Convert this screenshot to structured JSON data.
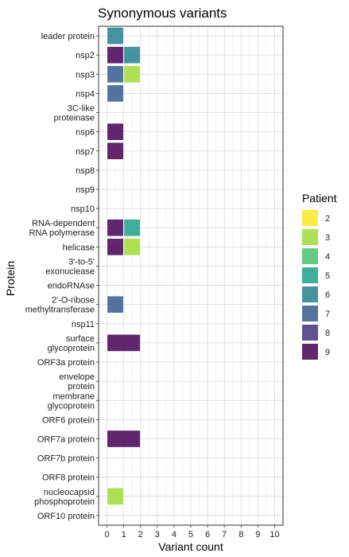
{
  "chart_data": {
    "type": "bar",
    "orientation": "horizontal",
    "stacked": true,
    "title": "Synonymous variants",
    "xlabel": "Variant count",
    "ylabel": "Protein",
    "xlim": [
      0,
      10
    ],
    "x_ticks": [
      0,
      1,
      2,
      3,
      4,
      5,
      6,
      7,
      8,
      9,
      10
    ],
    "grid": true,
    "legend_position": "right",
    "categories": [
      "leader protein",
      "nsp2",
      "nsp3",
      "nsp4",
      "3C-like\nproteinase",
      "nsp6",
      "nsp7",
      "nsp8",
      "nsp9",
      "nsp10",
      "RNA-dependent\nRNA polymerase",
      "helicase",
      "3'-to-5'\nexonuclease",
      "endoRNAse",
      "2'-O-ribose\nmethyltransferase",
      "nsp11",
      "surface\nglycoprotein",
      "ORF3a protein",
      "envelope\nprotein",
      "membrane\nglycoprotein",
      "ORF6 protein",
      "ORF7a protein",
      "ORF7b protein",
      "ORF8 protein",
      "nucleocapsid\nphosphoprotein",
      "ORF10 protein"
    ],
    "series": [
      {
        "name": "2",
        "color": "#FDE725",
        "values": [
          0,
          0,
          0,
          0,
          0,
          0,
          0,
          0,
          0,
          0,
          0,
          0,
          0,
          0,
          0,
          0,
          0,
          0,
          0,
          0,
          0,
          0,
          0,
          0,
          0,
          0
        ]
      },
      {
        "name": "3",
        "color": "#A0DA39",
        "values": [
          0,
          0,
          1,
          0,
          0,
          0,
          0,
          0,
          0,
          0,
          0,
          1,
          0,
          0,
          0,
          0,
          0,
          0,
          0,
          0,
          0,
          0,
          0,
          0,
          1,
          0
        ]
      },
      {
        "name": "4",
        "color": "#4AC16D",
        "values": [
          0,
          0,
          0,
          0,
          0,
          0,
          0,
          0,
          0,
          0,
          0,
          0,
          0,
          0,
          0,
          0,
          0,
          0,
          0,
          0,
          0,
          0,
          0,
          0,
          0,
          0
        ]
      },
      {
        "name": "5",
        "color": "#1FA187",
        "values": [
          0,
          0,
          0,
          0,
          0,
          0,
          0,
          0,
          0,
          0,
          1,
          0,
          0,
          0,
          0,
          0,
          0,
          0,
          0,
          0,
          0,
          0,
          0,
          0,
          0,
          0
        ]
      },
      {
        "name": "6",
        "color": "#277F8E",
        "values": [
          1,
          1,
          0,
          0,
          0,
          0,
          0,
          0,
          0,
          0,
          0,
          0,
          0,
          0,
          0,
          0,
          0,
          0,
          0,
          0,
          0,
          0,
          0,
          0,
          0,
          0
        ]
      },
      {
        "name": "7",
        "color": "#365C8D",
        "values": [
          0,
          0,
          1,
          1,
          0,
          0,
          0,
          0,
          0,
          0,
          0,
          0,
          0,
          0,
          1,
          0,
          0,
          0,
          0,
          0,
          0,
          0,
          0,
          0,
          0,
          0
        ]
      },
      {
        "name": "8",
        "color": "#46327E",
        "values": [
          0,
          0,
          0,
          0,
          0,
          0,
          0,
          0,
          0,
          0,
          0,
          0,
          0,
          0,
          0,
          0,
          0,
          0,
          0,
          0,
          0,
          0,
          0,
          0,
          0,
          0
        ]
      },
      {
        "name": "9",
        "color": "#440154",
        "values": [
          0,
          1,
          0,
          0,
          0,
          1,
          1,
          0,
          0,
          0,
          1,
          1,
          0,
          0,
          0,
          0,
          2,
          0,
          0,
          0,
          0,
          2,
          0,
          0,
          0,
          0
        ]
      }
    ],
    "stack_order": [
      "9",
      "8",
      "7",
      "6",
      "5",
      "4",
      "3",
      "2"
    ]
  }
}
